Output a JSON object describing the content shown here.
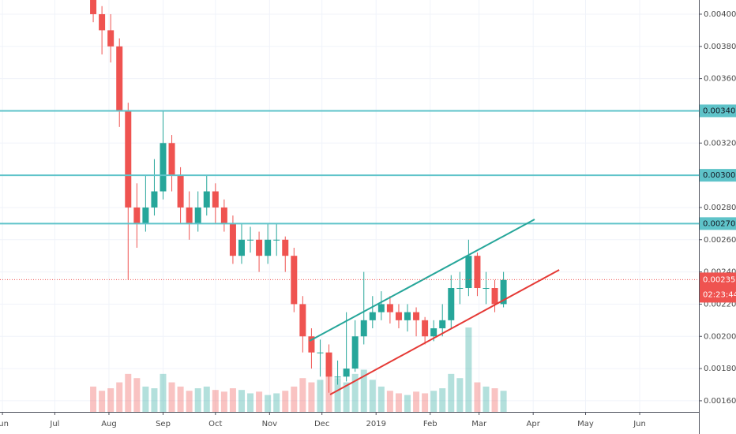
{
  "chart_data": {
    "type": "candlestick",
    "x": [
      52,
      57,
      62,
      67,
      72,
      77,
      82,
      87,
      92,
      97,
      102,
      107,
      112,
      117,
      122,
      127,
      132,
      137,
      142,
      147,
      152,
      157,
      162,
      167,
      172,
      177,
      182,
      187,
      192,
      197,
      202,
      207,
      212,
      217,
      222,
      227,
      232,
      237,
      242,
      247,
      252,
      257,
      262,
      267,
      272,
      277,
      282,
      287
    ],
    "open": [
      0.0041,
      0.004,
      0.0039,
      0.0038,
      0.0034,
      0.0028,
      0.0027,
      0.0028,
      0.0029,
      0.0032,
      0.003,
      0.0028,
      0.0027,
      0.0028,
      0.0029,
      0.0028,
      0.0027,
      0.0025,
      0.0026,
      0.0026,
      0.0025,
      0.0026,
      0.0026,
      0.0025,
      0.0022,
      0.002,
      0.0019,
      0.0019,
      0.00175,
      0.00175,
      0.0018,
      0.002,
      0.0021,
      0.00215,
      0.0022,
      0.00215,
      0.0021,
      0.00215,
      0.0021,
      0.002,
      0.00205,
      0.0021,
      0.0023,
      0.0023,
      0.0025,
      0.0023,
      0.0023,
      0.0022
    ],
    "high": [
      0.00412,
      0.00405,
      0.004,
      0.00385,
      0.00345,
      0.00295,
      0.003,
      0.0031,
      0.0034,
      0.00325,
      0.00305,
      0.0029,
      0.0029,
      0.003,
      0.00295,
      0.00285,
      0.00275,
      0.0027,
      0.00268,
      0.00265,
      0.0027,
      0.0027,
      0.00262,
      0.00255,
      0.00225,
      0.00205,
      0.00198,
      0.00195,
      0.00185,
      0.00215,
      0.0021,
      0.0024,
      0.00225,
      0.00228,
      0.00225,
      0.0022,
      0.0022,
      0.00218,
      0.00212,
      0.0021,
      0.0022,
      0.00238,
      0.0024,
      0.0026,
      0.00252,
      0.0024,
      0.00235,
      0.0024
    ],
    "low": [
      0.00395,
      0.00375,
      0.0037,
      0.0033,
      0.00235,
      0.00255,
      0.00265,
      0.00275,
      0.00285,
      0.0029,
      0.0027,
      0.0026,
      0.00265,
      0.00275,
      0.0027,
      0.00265,
      0.00245,
      0.00245,
      0.00252,
      0.0024,
      0.00245,
      0.0025,
      0.0024,
      0.00215,
      0.0019,
      0.0018,
      0.00175,
      0.00165,
      0.0017,
      0.00172,
      0.00178,
      0.00195,
      0.00205,
      0.0021,
      0.00208,
      0.00205,
      0.00203,
      0.002,
      0.00195,
      0.00197,
      0.002,
      0.00205,
      0.0022,
      0.00225,
      0.00225,
      0.0022,
      0.00215,
      0.00218
    ],
    "close": [
      0.004,
      0.0039,
      0.0038,
      0.0034,
      0.0028,
      0.0027,
      0.0028,
      0.0029,
      0.0032,
      0.003,
      0.0028,
      0.0027,
      0.0028,
      0.0029,
      0.0028,
      0.0027,
      0.0025,
      0.0026,
      0.0026,
      0.0025,
      0.0026,
      0.0026,
      0.0025,
      0.0022,
      0.002,
      0.0019,
      0.0019,
      0.00175,
      0.00175,
      0.0018,
      0.002,
      0.0021,
      0.00215,
      0.0022,
      0.00215,
      0.0021,
      0.00215,
      0.0021,
      0.002,
      0.00205,
      0.0021,
      0.0023,
      0.0023,
      0.0025,
      0.0023,
      0.0023,
      0.0022,
      0.00235
    ],
    "volume": [
      30,
      25,
      28,
      35,
      45,
      40,
      30,
      28,
      45,
      35,
      30,
      25,
      28,
      30,
      26,
      24,
      28,
      26,
      22,
      24,
      20,
      22,
      25,
      30,
      40,
      35,
      38,
      45,
      40,
      35,
      45,
      50,
      38,
      30,
      25,
      22,
      20,
      24,
      22,
      25,
      28,
      45,
      40,
      100,
      35,
      30,
      28,
      25
    ],
    "vlim": [
      0,
      100
    ],
    "up_color": "#26a69a",
    "down_color": "#ef5350",
    "xlim": [
      -1.4,
      398.9
    ],
    "xticks": [
      {
        "value": 0,
        "label": "Jun"
      },
      {
        "value": 30,
        "label": "Jul"
      },
      {
        "value": 61,
        "label": "Aug"
      },
      {
        "value": 92,
        "label": "Sep"
      },
      {
        "value": 122,
        "label": "Oct"
      },
      {
        "value": 153,
        "label": "Nov"
      },
      {
        "value": 183,
        "label": "Dec"
      },
      {
        "value": 214,
        "label": "2019"
      },
      {
        "value": 245,
        "label": "Feb"
      },
      {
        "value": 273,
        "label": "Mar"
      },
      {
        "value": 304,
        "label": "Apr"
      },
      {
        "value": 334,
        "label": "May"
      },
      {
        "value": 365,
        "label": "Jun"
      }
    ],
    "ylim": [
      0.001531,
      0.004088
    ],
    "yticks": [
      {
        "value": 0.0016,
        "label": "0.001600"
      },
      {
        "value": 0.0018,
        "label": "0.001800"
      },
      {
        "value": 0.002,
        "label": "0.002000"
      },
      {
        "value": 0.0022,
        "label": "0.002200"
      },
      {
        "value": 0.0024,
        "label": "0.002400"
      },
      {
        "value": 0.0026,
        "label": "0.002600"
      },
      {
        "value": 0.0028,
        "label": "0.002800"
      },
      {
        "value": 0.003,
        "label": "0.003000"
      },
      {
        "value": 0.0032,
        "label": "0.003200"
      },
      {
        "value": 0.0034,
        "label": "0.003400"
      },
      {
        "value": 0.0036,
        "label": "0.003600"
      },
      {
        "value": 0.0038,
        "label": "0.003800"
      },
      {
        "value": 0.004,
        "label": "0.004000"
      }
    ],
    "grid": true,
    "levels": [
      {
        "value": 0.0034,
        "label": "0.003400",
        "color": "#5ec3c9"
      },
      {
        "value": 0.003,
        "label": "0.003000",
        "color": "#5ec3c9"
      },
      {
        "value": 0.0027,
        "label": "0.002700",
        "color": "#5ec3c9"
      }
    ],
    "last_price": {
      "value": 0.002352,
      "label": "0.002352",
      "countdown": "02:23:44",
      "color": "#ef5350"
    },
    "trendlines": [
      {
        "x": [
          175.9,
          304.8
        ],
        "y": [
          0.001972,
          0.002726
        ],
        "color": "#26a69a"
      },
      {
        "x": [
          187.7,
          318.9
        ],
        "y": [
          0.001639,
          0.002413
        ],
        "color": "#e53935"
      }
    ]
  }
}
